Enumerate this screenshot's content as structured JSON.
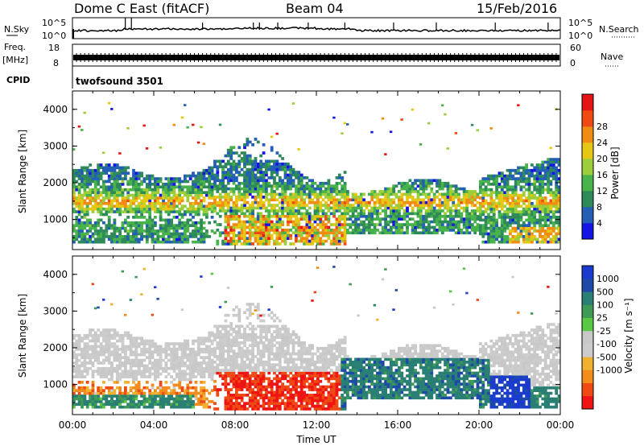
{
  "header": {
    "station": "Dome C East (fitACF)",
    "beam": "Beam 04",
    "date": "15/Feb/2016"
  },
  "strip_labels": {
    "nsky": "N.Sky",
    "nsearch": "N.Search",
    "freq_line1": "Freq.",
    "freq_line2": "[MHz]",
    "nave": "Nave",
    "cpid": "CPID",
    "cpid_value": "twofsound 3501"
  },
  "strip_ticks": {
    "noise_left": [
      "10^5",
      "10^0"
    ],
    "noise_right": [
      "10^5",
      "10^0"
    ],
    "freq_left": [
      "18",
      "8"
    ],
    "nave_right": [
      "60",
      "0"
    ]
  },
  "colors": {
    "power_scale": [
      "#1414e6",
      "#235fb4",
      "#2f8a5a",
      "#48b34a",
      "#9ccd3a",
      "#e6c814",
      "#f08c14",
      "#f04a14",
      "#e61414"
    ],
    "velocity_scale": [
      "#ee1414",
      "#f04a14",
      "#f28c1c",
      "#f0b030",
      "#cccccc",
      "#c8c8c8",
      "#58c845",
      "#3e9a55",
      "#2a7f74",
      "#1d4aa8",
      "#1a3ad0"
    ]
  },
  "chart_data": [
    {
      "type": "heatmap",
      "name_key": "power",
      "xlabel": "",
      "ylabel": "Slant Range [km]",
      "xlim": [
        "00:00",
        "24:00"
      ],
      "ylim": [
        180,
        4500
      ],
      "yticks": [
        "1000",
        "2000",
        "3000",
        "4000"
      ],
      "colorbar_label": "Power [dB]",
      "colorbar_ticks": [
        "4",
        "8",
        "12",
        "16",
        "20",
        "24",
        "28"
      ]
    },
    {
      "type": "heatmap",
      "name_key": "velocity",
      "xlabel": "Time UT",
      "ylabel": "Slant Range [km]",
      "xlim": [
        "00:00",
        "24:00"
      ],
      "ylim": [
        180,
        4500
      ],
      "yticks": [
        "1000",
        "2000",
        "3000",
        "4000"
      ],
      "xticks": [
        "00:00",
        "04:00",
        "08:00",
        "12:00",
        "16:00",
        "20:00",
        "00:00"
      ],
      "colorbar_label": "Velocity [m s⁻¹]",
      "colorbar_ticks": [
        "1000",
        "500",
        "100",
        "25",
        "-25",
        "-100",
        "-500",
        "-1000"
      ]
    }
  ]
}
